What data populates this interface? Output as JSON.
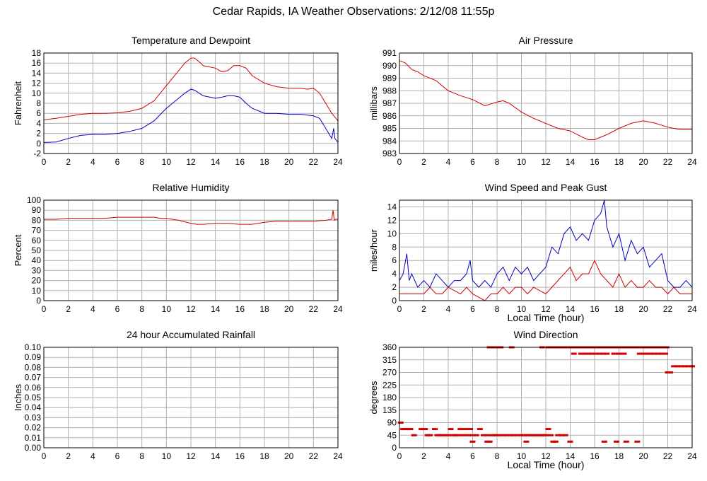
{
  "page_title": "Cedar Rapids, IA Weather Observations: 2/12/08 11:55p",
  "colors": {
    "red": "#d00000",
    "blue": "#0000c0",
    "grid": "#b0b0b0",
    "frame": "#000000"
  },
  "chart_data": [
    {
      "id": "temp",
      "type": "line",
      "title": "Temperature and Dewpoint",
      "xlabel": "",
      "ylabel": "Fahrenheit",
      "xlim": [
        0,
        24
      ],
      "ylim": [
        -2,
        18
      ],
      "xticks": [
        0,
        2,
        4,
        6,
        8,
        10,
        12,
        14,
        16,
        18,
        20,
        22,
        24
      ],
      "yticks": [
        -2,
        0,
        2,
        4,
        6,
        8,
        10,
        12,
        14,
        16,
        18
      ],
      "ytick_decimals": 0,
      "grid": true,
      "series": [
        {
          "color": "#d00000",
          "x": [
            0,
            1,
            2,
            3,
            4,
            5,
            6,
            7,
            8,
            9,
            10,
            11,
            11.5,
            12,
            12.3,
            12.8,
            13,
            14,
            14.5,
            15,
            15.5,
            16,
            16.5,
            17,
            18,
            19,
            20,
            21,
            21.5,
            22,
            22.5,
            23,
            23.5,
            24
          ],
          "y": [
            4.7,
            5,
            5.4,
            5.8,
            6,
            6,
            6.1,
            6.4,
            7,
            8.5,
            11.5,
            14.5,
            16,
            17,
            17,
            16,
            15.5,
            15,
            14.3,
            14.5,
            15.5,
            15.5,
            15,
            13.5,
            12,
            11.3,
            11,
            11,
            10.8,
            11,
            10,
            8,
            6,
            4.5
          ]
        },
        {
          "color": "#0000c0",
          "x": [
            0,
            1,
            2,
            3,
            4,
            5,
            6,
            7,
            8,
            9,
            10,
            11,
            11.5,
            12,
            12.3,
            12.8,
            13,
            14,
            14.5,
            15,
            15.5,
            16,
            16.5,
            17,
            18,
            19,
            20,
            21,
            22,
            22.5,
            23,
            23.5,
            23.65,
            23.75,
            24
          ],
          "y": [
            0.2,
            0.3,
            1,
            1.6,
            1.8,
            1.8,
            2,
            2.4,
            3,
            4.5,
            7,
            9,
            10,
            10.8,
            10.6,
            9.8,
            9.5,
            9,
            9.2,
            9.5,
            9.5,
            9.2,
            8,
            7,
            6,
            6,
            5.8,
            5.8,
            5.5,
            5,
            3,
            1,
            3,
            1,
            0.2
          ]
        }
      ]
    },
    {
      "id": "pressure",
      "type": "line",
      "title": "Air Pressure",
      "xlabel": "",
      "ylabel": "millibars",
      "xlim": [
        0,
        24
      ],
      "ylim": [
        983,
        991
      ],
      "xticks": [
        0,
        2,
        4,
        6,
        8,
        10,
        12,
        14,
        16,
        18,
        20,
        22,
        24
      ],
      "yticks": [
        983,
        984,
        985,
        986,
        987,
        988,
        989,
        990,
        991
      ],
      "ytick_decimals": 0,
      "grid": true,
      "series": [
        {
          "color": "#d00000",
          "x": [
            0,
            0.5,
            1,
            1.5,
            2,
            3,
            4,
            5,
            6,
            7,
            8,
            8.5,
            9,
            10,
            11,
            12,
            13,
            14,
            15,
            15.5,
            16,
            17,
            18,
            19,
            20,
            21,
            22,
            23,
            24
          ],
          "y": [
            990.4,
            990.2,
            989.7,
            989.5,
            989.2,
            988.8,
            988,
            987.6,
            987.3,
            986.8,
            987.1,
            987.2,
            987,
            986.3,
            985.8,
            985.4,
            985,
            984.8,
            984.3,
            984.1,
            984.1,
            984.5,
            985,
            985.4,
            985.6,
            985.4,
            985.1,
            984.9,
            984.9
          ]
        }
      ]
    },
    {
      "id": "humidity",
      "type": "line",
      "title": "Relative Humidity",
      "xlabel": "",
      "ylabel": "Percent",
      "xlim": [
        0,
        24
      ],
      "ylim": [
        0,
        100
      ],
      "xticks": [
        0,
        2,
        4,
        6,
        8,
        10,
        12,
        14,
        16,
        18,
        20,
        22,
        24
      ],
      "yticks": [
        0,
        10,
        20,
        30,
        40,
        50,
        60,
        70,
        80,
        90,
        100
      ],
      "ytick_decimals": 0,
      "grid": true,
      "series": [
        {
          "color": "#d00000",
          "x": [
            0,
            1,
            2,
            3,
            4,
            5,
            6,
            7,
            8,
            9,
            9.5,
            10,
            11,
            12,
            12.5,
            13,
            14,
            15,
            16,
            17,
            18,
            19,
            20,
            21,
            22,
            23,
            23.5,
            23.6,
            23.7,
            23.8,
            24
          ],
          "y": [
            81,
            81,
            82,
            82,
            82,
            82,
            83,
            83,
            83,
            83,
            82,
            82,
            80,
            77,
            76,
            76,
            77,
            77,
            76,
            76,
            78,
            79,
            79,
            79,
            79,
            80,
            81,
            90,
            80,
            81,
            81
          ]
        }
      ]
    },
    {
      "id": "wind",
      "type": "line",
      "title": "Wind Speed and Peak Gust",
      "xlabel": "Local Time (hour)",
      "ylabel": "miles/hour",
      "xlim": [
        0,
        24
      ],
      "ylim": [
        0,
        15
      ],
      "xticks": [
        0,
        2,
        4,
        6,
        8,
        10,
        12,
        14,
        16,
        18,
        20,
        22,
        24
      ],
      "yticks": [
        0,
        2,
        4,
        6,
        8,
        10,
        12,
        14
      ],
      "ytick_decimals": 0,
      "grid": true,
      "series": [
        {
          "color": "#0000c0",
          "x": [
            0,
            0.3,
            0.6,
            0.8,
            1,
            1.5,
            2,
            2.5,
            3,
            3.5,
            4,
            4.5,
            5,
            5.5,
            5.8,
            6,
            6.5,
            7,
            7.5,
            8,
            8.5,
            9,
            9.5,
            10,
            10.5,
            11,
            11.5,
            12,
            12.5,
            13,
            13.5,
            14,
            14.5,
            15,
            15.5,
            16,
            16.5,
            16.8,
            17,
            17.5,
            18,
            18.5,
            19,
            19.5,
            20,
            20.5,
            21,
            21.5,
            22,
            22.5,
            23,
            23.5,
            24
          ],
          "y": [
            3,
            4,
            7,
            3,
            4,
            2,
            3,
            2,
            4,
            3,
            2,
            3,
            3,
            4,
            6,
            3,
            2,
            3,
            2,
            4,
            5,
            3,
            5,
            4,
            5,
            3,
            4,
            5,
            8,
            7,
            10,
            11,
            9,
            10,
            9,
            12,
            13,
            15,
            11,
            8,
            10,
            6,
            9,
            7,
            8,
            5,
            6,
            7,
            3,
            2,
            2,
            3,
            2
          ]
        },
        {
          "color": "#d00000",
          "x": [
            0,
            1,
            2,
            2.5,
            3,
            3.5,
            4,
            5,
            5.5,
            6,
            7,
            7.5,
            8,
            8.5,
            9,
            9.5,
            10,
            10.5,
            11,
            12,
            12.5,
            13,
            13.5,
            14,
            14.5,
            15,
            15.5,
            16,
            16.5,
            17,
            17.5,
            18,
            18.5,
            19,
            19.5,
            20,
            20.5,
            21,
            21.5,
            22,
            22.5,
            23,
            23.5,
            24
          ],
          "y": [
            1,
            1,
            1,
            2,
            1,
            1,
            2,
            1,
            2,
            1,
            0,
            1,
            1,
            2,
            1,
            2,
            2,
            1,
            2,
            1,
            2,
            3,
            4,
            5,
            3,
            4,
            4,
            6,
            4,
            3,
            2,
            4,
            2,
            3,
            2,
            2,
            3,
            2,
            2,
            1,
            2,
            1,
            1,
            1
          ]
        }
      ]
    },
    {
      "id": "rain",
      "type": "line",
      "title": "24 hour Accumulated Rainfall",
      "xlabel": "",
      "ylabel": "Inches",
      "xlim": [
        0,
        24
      ],
      "ylim": [
        0,
        0.1
      ],
      "xticks": [
        0,
        2,
        4,
        6,
        8,
        10,
        12,
        14,
        16,
        18,
        20,
        22,
        24
      ],
      "yticks": [
        0,
        0.01,
        0.02,
        0.03,
        0.04,
        0.05,
        0.06,
        0.07,
        0.08,
        0.09,
        0.1
      ],
      "ytick_decimals": 2,
      "grid": true,
      "series": [
        {
          "color": "#d00000",
          "x": [
            0,
            24
          ],
          "y": [
            0,
            0
          ]
        }
      ]
    },
    {
      "id": "direction",
      "type": "scatter",
      "title": "Wind Direction",
      "xlabel": "Local Time (hour)",
      "ylabel": "degrees",
      "xlim": [
        0,
        24
      ],
      "ylim": [
        0,
        360
      ],
      "xticks": [
        0,
        2,
        4,
        6,
        8,
        10,
        12,
        14,
        16,
        18,
        20,
        22,
        24
      ],
      "yticks": [
        0,
        45,
        90,
        135,
        180,
        225,
        270,
        315,
        360
      ],
      "ytick_decimals": 0,
      "grid": true,
      "series": [
        {
          "color": "#d00000",
          "x": [
            0.1,
            0.3,
            0.5,
            0.7,
            0.9,
            1.2,
            1.8,
            2.1,
            2.3,
            2.5,
            2.9,
            3.1,
            3.3,
            3.5,
            3.8,
            4.0,
            4.2,
            4.4,
            4.6,
            4.8,
            5.0,
            5.2,
            5.4,
            5.6,
            5.8,
            6.0,
            6.3,
            6.6,
            6.9,
            7.2,
            7.4,
            7.6,
            7.8,
            8.0,
            8.2,
            8.5,
            8.8,
            9.1,
            9.4,
            9.7,
            10.0,
            10.2,
            10.4,
            10.6,
            10.8,
            11.0,
            11.2,
            11.4,
            11.6,
            11.8,
            12.0,
            12.2,
            12.4,
            12.6,
            13.0,
            13.3,
            13.6,
            14.0,
            7.4,
            7.7,
            8.0,
            8.3,
            9.2,
            11.7,
            12.2,
            12.6,
            13.0,
            13.4,
            13.8,
            14.2,
            14.6,
            15.0,
            15.3,
            15.6,
            15.9,
            16.2,
            16.5,
            16.8,
            17.1,
            17.4,
            17.7,
            18.0,
            18.3,
            18.6,
            18.9,
            19.2,
            19.5,
            19.8,
            20.1,
            20.4,
            20.7,
            21.0,
            21.3,
            21.6,
            21.9,
            14.3,
            14.9,
            15.2,
            15.5,
            15.8,
            16.1,
            16.4,
            16.7,
            17.0,
            17.6,
            18.0,
            18.4,
            19.7,
            20.0,
            20.3,
            20.6,
            20.9,
            21.2,
            21.5,
            21.8,
            22.0,
            22.2,
            22.5,
            22.8,
            23.1,
            23.4,
            23.7,
            24.0,
            6.0,
            7.2,
            10.4,
            12.8,
            16.8,
            17.8,
            18.6,
            19.5
          ],
          "y": [
            90,
            67,
            67,
            67,
            67,
            45,
            67,
            67,
            45,
            45,
            67,
            45,
            45,
            45,
            45,
            45,
            67,
            45,
            45,
            45,
            67,
            45,
            67,
            45,
            67,
            45,
            45,
            67,
            45,
            45,
            22,
            45,
            45,
            45,
            45,
            45,
            45,
            45,
            45,
            45,
            45,
            45,
            45,
            45,
            45,
            45,
            45,
            45,
            45,
            45,
            45,
            67,
            45,
            22,
            45,
            45,
            45,
            22,
            360,
            360,
            360,
            360,
            360,
            360,
            360,
            360,
            360,
            360,
            360,
            360,
            360,
            360,
            360,
            360,
            360,
            360,
            360,
            360,
            360,
            360,
            360,
            360,
            360,
            360,
            360,
            360,
            360,
            360,
            360,
            360,
            360,
            360,
            360,
            360,
            360,
            337,
            337,
            337,
            337,
            337,
            337,
            337,
            337,
            337,
            337,
            337,
            337,
            337,
            337,
            337,
            337,
            337,
            337,
            337,
            337,
            270,
            270,
            292,
            292,
            292,
            292,
            292,
            292,
            22,
            22,
            22,
            22,
            22,
            22,
            22,
            22
          ]
        }
      ]
    }
  ]
}
